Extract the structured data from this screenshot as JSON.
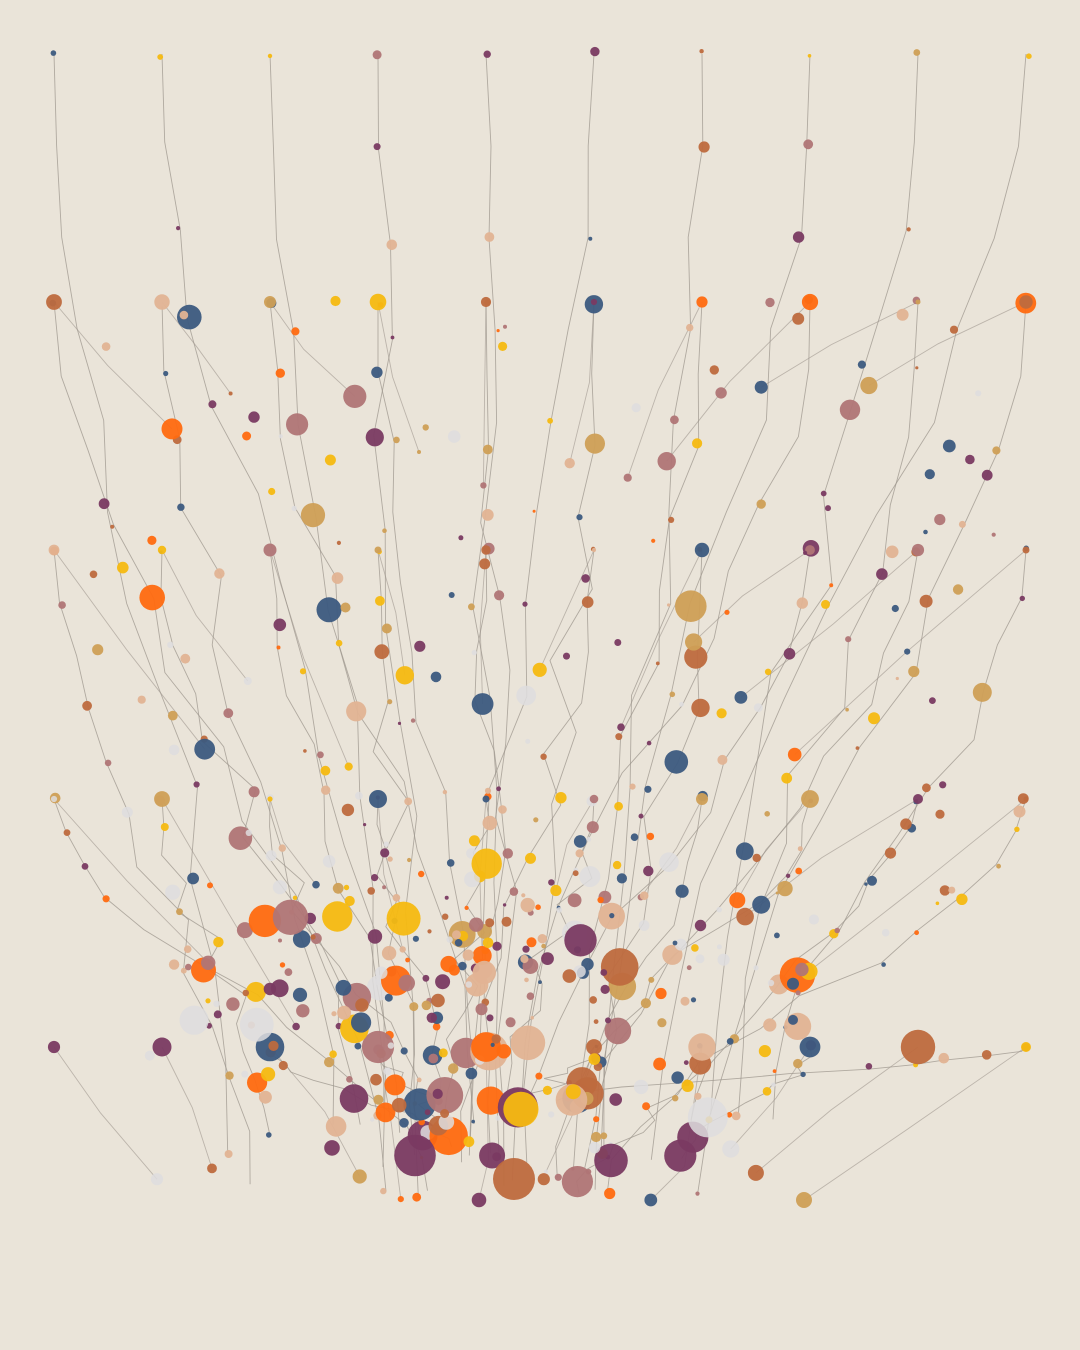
{
  "palette": {
    "background": "#EAE4D9",
    "line": "#9C958C",
    "navy": "#3C5A80",
    "plum": "#7A3A62",
    "orange": "#FF6A10",
    "amber": "#F6B911",
    "rust": "#BE6A3E",
    "mustard": "#CF9F56",
    "peach": "#E2B393",
    "rose": "#B07576",
    "pale": "#DEDDDE"
  },
  "artwork": {
    "kind": "generative-flow-field",
    "strands": 10,
    "particles_per_strand": 40
  }
}
